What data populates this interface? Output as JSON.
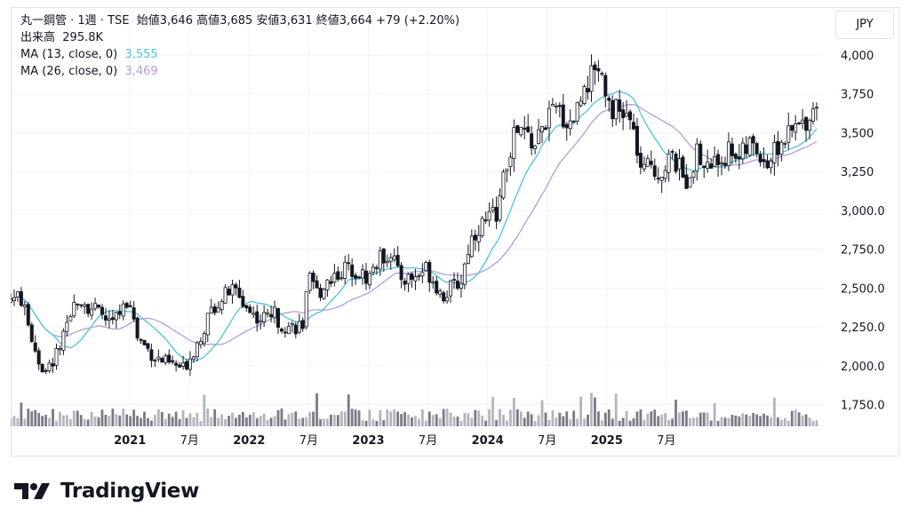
{
  "legend": {
    "symbol": "丸一鋼管 · 1週 · TSE",
    "ohlc": "始値3,646  高値3,685  安値3,631  終値3,664  +79 (+2.20%)",
    "volume_label": "出来高",
    "volume_value": "295.8K",
    "ma13_label": "MA (13, close, 0)",
    "ma13_value": "3,555",
    "ma26_label": "MA (26, close, 0)",
    "ma26_value": "3,469"
  },
  "currency_button": "JPY",
  "logo_text": "TradingView",
  "chart_data": {
    "type": "candlestick",
    "interval": "1週",
    "currency": "JPY",
    "ylim": [
      1650,
      4080
    ],
    "y_ticks": [
      {
        "v": 4000,
        "label": "4,000"
      },
      {
        "v": 3750,
        "label": "3,750"
      },
      {
        "v": 3500,
        "label": "3,500"
      },
      {
        "v": 3250,
        "label": "3,250"
      },
      {
        "v": 3000,
        "label": "3,000.0"
      },
      {
        "v": 2750,
        "label": "2,750.0"
      },
      {
        "v": 2500,
        "label": "2,500.0"
      },
      {
        "v": 2250,
        "label": "2,250.0"
      },
      {
        "v": 2000,
        "label": "2,000.0"
      },
      {
        "v": 1750,
        "label": "1,750.0"
      }
    ],
    "x_ticks": [
      {
        "t": 2021.0,
        "label": "2021",
        "bold": true
      },
      {
        "t": 2021.5,
        "label": "7月",
        "bold": false
      },
      {
        "t": 2022.0,
        "label": "2022",
        "bold": true
      },
      {
        "t": 2022.5,
        "label": "7月",
        "bold": false
      },
      {
        "t": 2023.0,
        "label": "2023",
        "bold": true
      },
      {
        "t": 2023.5,
        "label": "7月",
        "bold": false
      },
      {
        "t": 2024.0,
        "label": "2024",
        "bold": true
      },
      {
        "t": 2024.5,
        "label": "7月",
        "bold": false
      },
      {
        "t": 2025.0,
        "label": "2025",
        "bold": true
      },
      {
        "t": 2025.5,
        "label": "7月",
        "bold": false
      }
    ],
    "price_path": [
      [
        2020.0,
        2430
      ],
      [
        2020.08,
        2450
      ],
      [
        2020.15,
        2250
      ],
      [
        2020.25,
        2000
      ],
      [
        2020.3,
        1950
      ],
      [
        2020.4,
        2100
      ],
      [
        2020.5,
        2280
      ],
      [
        2020.55,
        2450
      ],
      [
        2020.65,
        2390
      ],
      [
        2020.75,
        2330
      ],
      [
        2020.85,
        2270
      ],
      [
        2020.95,
        2380
      ],
      [
        2021.0,
        2450
      ],
      [
        2021.05,
        2200
      ],
      [
        2021.2,
        2060
      ],
      [
        2021.3,
        2020
      ],
      [
        2021.45,
        1980
      ],
      [
        2021.55,
        2120
      ],
      [
        2021.7,
        2380
      ],
      [
        2021.85,
        2490
      ],
      [
        2021.9,
        2470
      ],
      [
        2022.0,
        2350
      ],
      [
        2022.1,
        2300
      ],
      [
        2022.2,
        2350
      ],
      [
        2022.25,
        2280
      ],
      [
        2022.35,
        2250
      ],
      [
        2022.45,
        2260
      ],
      [
        2022.5,
        2550
      ],
      [
        2022.58,
        2460
      ],
      [
        2022.65,
        2550
      ],
      [
        2022.75,
        2600
      ],
      [
        2022.85,
        2640
      ],
      [
        2022.92,
        2600
      ],
      [
        2023.0,
        2560
      ],
      [
        2023.05,
        2650
      ],
      [
        2023.12,
        2700
      ],
      [
        2023.2,
        2740
      ],
      [
        2023.25,
        2580
      ],
      [
        2023.32,
        2560
      ],
      [
        2023.4,
        2570
      ],
      [
        2023.48,
        2630
      ],
      [
        2023.55,
        2550
      ],
      [
        2023.62,
        2450
      ],
      [
        2023.7,
        2500
      ],
      [
        2023.78,
        2550
      ],
      [
        2023.85,
        2800
      ],
      [
        2023.93,
        2900
      ],
      [
        2024.0,
        2930
      ],
      [
        2024.08,
        3000
      ],
      [
        2024.15,
        3250
      ],
      [
        2024.22,
        3480
      ],
      [
        2024.3,
        3500
      ],
      [
        2024.4,
        3420
      ],
      [
        2024.5,
        3600
      ],
      [
        2024.6,
        3640
      ],
      [
        2024.68,
        3550
      ],
      [
        2024.76,
        3670
      ],
      [
        2024.82,
        3860
      ],
      [
        2024.86,
        3820
      ],
      [
        2024.9,
        3950
      ],
      [
        2024.94,
        3920
      ],
      [
        2024.97,
        3860
      ],
      [
        2025.02,
        3700
      ],
      [
        2025.1,
        3620
      ],
      [
        2025.18,
        3600
      ],
      [
        2025.24,
        3450
      ],
      [
        2025.3,
        3200
      ],
      [
        2025.36,
        3320
      ],
      [
        2025.44,
        3230
      ],
      [
        2025.52,
        3340
      ],
      [
        2025.6,
        3280
      ],
      [
        2025.66,
        3180
      ],
      [
        2025.75,
        3370
      ],
      [
        2025.82,
        3280
      ],
      [
        2025.9,
        3300
      ],
      [
        2025.97,
        3340
      ],
      [
        2026.05,
        3400
      ],
      [
        2026.12,
        3340
      ],
      [
        2026.2,
        3420
      ],
      [
        2026.3,
        3360
      ],
      [
        2026.35,
        3300
      ],
      [
        2026.42,
        3400
      ],
      [
        2026.5,
        3460
      ],
      [
        2026.58,
        3520
      ],
      [
        2026.66,
        3580
      ],
      [
        2026.72,
        3650
      ],
      [
        2026.76,
        3660
      ]
    ],
    "volume_note": "weekly volume histogram along bottom of pane",
    "ma_series": [
      {
        "name": "MA (13, close, 0)",
        "color": "#4fc3d9",
        "last": 3555
      },
      {
        "name": "MA (26, close, 0)",
        "color": "#b39ddb",
        "last": 3469
      }
    ]
  }
}
